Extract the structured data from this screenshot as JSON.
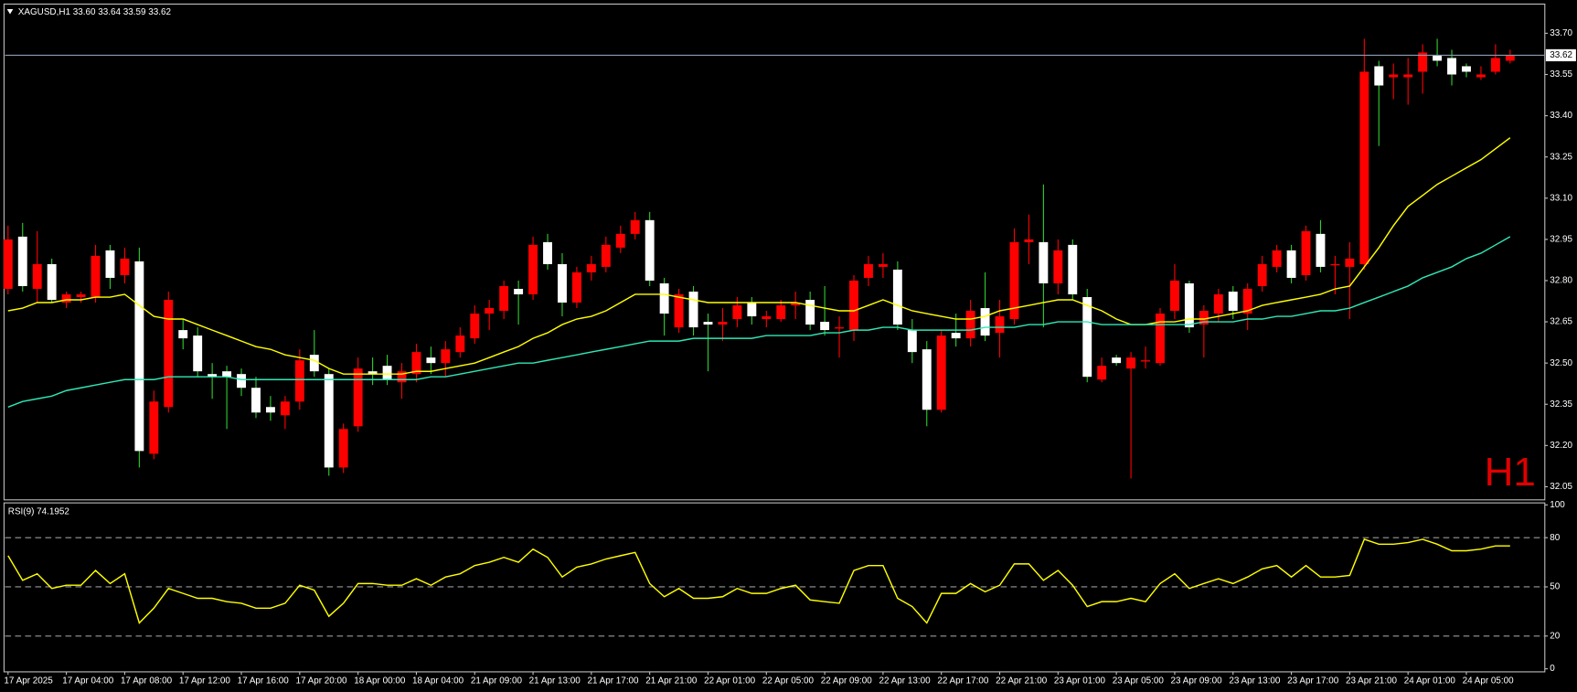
{
  "chart_data": [
    {
      "type": "candlestick",
      "title": "XAGUSD,H1  33.60 33.64 33.59 33.62",
      "watermark": "H1",
      "categories": [
        "17 Apr 2025",
        null,
        null,
        null,
        "17 Apr 04:00",
        null,
        null,
        null,
        "17 Apr 08:00",
        null,
        null,
        null,
        "17 Apr 12:00",
        null,
        null,
        null,
        "17 Apr 16:00",
        null,
        null,
        null,
        "17 Apr 20:00",
        null,
        null,
        null,
        "18 Apr 00:00",
        null,
        null,
        null,
        "18 Apr 04:00",
        null,
        null,
        null,
        "21 Apr 09:00",
        null,
        null,
        null,
        "21 Apr 13:00",
        null,
        null,
        null,
        "21 Apr 17:00",
        null,
        null,
        null,
        "21 Apr 21:00",
        null,
        null,
        null,
        "22 Apr 01:00",
        null,
        null,
        null,
        "22 Apr 05:00",
        null,
        null,
        null,
        "22 Apr 09:00",
        null,
        null,
        null,
        "22 Apr 13:00",
        null,
        null,
        null,
        "22 Apr 17:00",
        null,
        null,
        null,
        "22 Apr 21:00",
        null,
        null,
        null,
        "23 Apr 01:00",
        null,
        null,
        null,
        "23 Apr 05:00",
        null,
        null,
        null,
        "23 Apr 09:00",
        null,
        null,
        null,
        "23 Apr 13:00",
        null,
        null,
        null,
        "23 Apr 17:00",
        null,
        null,
        null,
        "23 Apr 21:00",
        null,
        null,
        null,
        "24 Apr 01:00",
        null,
        null,
        null,
        "24 Apr 05:00",
        null,
        null,
        null
      ],
      "open": [
        32.77,
        32.96,
        32.77,
        32.86,
        32.72,
        32.74,
        32.74,
        32.91,
        32.82,
        32.87,
        32.17,
        32.34,
        32.62,
        32.6,
        32.46,
        32.47,
        32.46,
        32.41,
        32.34,
        32.31,
        32.36,
        32.53,
        32.46,
        32.12,
        32.27,
        32.47,
        32.49,
        32.43,
        32.46,
        32.52,
        32.5,
        32.54,
        32.59,
        32.68,
        32.69,
        32.77,
        32.75,
        32.94,
        32.86,
        32.72,
        32.83,
        32.85,
        32.92,
        32.97,
        33.02,
        32.79,
        32.63,
        32.76,
        32.65,
        32.64,
        32.66,
        32.72,
        32.66,
        32.66,
        32.71,
        32.73,
        32.65,
        32.63,
        32.62,
        32.81,
        32.85,
        32.84,
        32.62,
        32.55,
        32.33,
        32.61,
        32.59,
        32.7,
        32.61,
        32.66,
        32.94,
        32.94,
        32.79,
        32.93,
        32.74,
        32.44,
        32.52,
        32.48,
        32.51,
        32.5,
        32.69,
        32.79,
        32.64,
        32.68,
        32.76,
        32.68,
        32.78,
        32.85,
        32.91,
        32.82,
        32.97,
        32.86,
        32.85,
        32.86,
        33.58,
        33.54,
        33.54,
        33.56,
        33.62,
        33.61,
        33.58,
        33.54,
        33.56,
        33.6
      ],
      "high": [
        33.0,
        33.01,
        32.98,
        32.88,
        32.76,
        32.76,
        32.93,
        32.93,
        32.92,
        32.92,
        32.4,
        32.76,
        32.66,
        32.63,
        32.5,
        32.49,
        32.48,
        32.45,
        32.38,
        32.38,
        32.55,
        32.62,
        32.48,
        32.28,
        32.52,
        32.52,
        32.53,
        32.5,
        32.57,
        32.56,
        32.58,
        32.63,
        32.71,
        32.73,
        32.8,
        32.8,
        32.96,
        32.97,
        32.9,
        32.85,
        32.89,
        32.96,
        33.0,
        33.05,
        33.05,
        32.81,
        32.77,
        32.78,
        32.68,
        32.7,
        32.74,
        32.74,
        32.69,
        32.73,
        32.76,
        32.76,
        32.78,
        32.67,
        32.82,
        32.89,
        32.9,
        32.87,
        32.66,
        32.58,
        32.62,
        32.68,
        32.73,
        32.83,
        32.73,
        32.99,
        33.04,
        33.15,
        32.95,
        32.95,
        32.77,
        32.52,
        32.53,
        32.54,
        32.56,
        32.7,
        32.86,
        32.8,
        32.71,
        32.77,
        32.78,
        32.79,
        32.89,
        32.93,
        32.93,
        33.0,
        33.02,
        32.89,
        32.94,
        33.68,
        33.6,
        33.59,
        33.61,
        33.66,
        33.68,
        33.64,
        33.59,
        33.58,
        33.66,
        33.64
      ],
      "low": [
        32.75,
        32.76,
        32.72,
        32.72,
        32.7,
        32.72,
        32.72,
        32.77,
        32.79,
        32.12,
        32.15,
        32.32,
        32.55,
        32.45,
        32.37,
        32.26,
        32.38,
        32.3,
        32.29,
        32.26,
        32.33,
        32.45,
        32.09,
        32.1,
        32.25,
        32.42,
        32.42,
        32.37,
        32.43,
        32.46,
        32.45,
        32.52,
        32.57,
        32.62,
        32.66,
        32.64,
        32.73,
        32.84,
        32.67,
        32.7,
        32.8,
        32.83,
        32.9,
        32.95,
        32.78,
        32.6,
        32.61,
        32.6,
        32.47,
        32.58,
        32.63,
        32.64,
        32.63,
        32.65,
        32.66,
        32.62,
        32.6,
        32.52,
        32.58,
        32.78,
        32.81,
        32.62,
        32.5,
        32.27,
        32.32,
        32.56,
        32.56,
        32.58,
        32.52,
        32.64,
        32.86,
        32.63,
        32.75,
        32.73,
        32.43,
        32.43,
        32.49,
        32.08,
        32.48,
        32.49,
        32.66,
        32.61,
        32.52,
        32.65,
        32.66,
        32.62,
        32.76,
        32.83,
        32.79,
        32.8,
        32.83,
        32.75,
        32.66,
        32.84,
        33.29,
        33.46,
        33.44,
        33.48,
        33.58,
        33.51,
        33.54,
        33.53,
        33.55,
        33.59
      ],
      "close": [
        32.95,
        32.78,
        32.86,
        32.73,
        32.75,
        32.75,
        32.89,
        32.81,
        32.88,
        32.18,
        32.36,
        32.73,
        32.59,
        32.47,
        32.45,
        32.45,
        32.41,
        32.32,
        32.32,
        32.36,
        32.51,
        32.47,
        32.12,
        32.26,
        32.48,
        32.46,
        32.44,
        32.47,
        32.54,
        32.5,
        32.55,
        32.6,
        32.68,
        32.7,
        32.78,
        32.75,
        32.93,
        32.86,
        32.72,
        32.83,
        32.86,
        32.93,
        32.97,
        33.02,
        32.8,
        32.68,
        32.75,
        32.63,
        32.64,
        32.65,
        32.71,
        32.67,
        32.67,
        32.71,
        32.72,
        32.64,
        32.62,
        32.63,
        32.8,
        32.86,
        32.86,
        32.64,
        32.54,
        32.33,
        32.6,
        32.59,
        32.69,
        32.6,
        32.67,
        32.94,
        32.95,
        32.79,
        32.91,
        32.75,
        32.45,
        32.49,
        32.5,
        32.52,
        32.51,
        32.68,
        32.8,
        32.63,
        32.69,
        32.75,
        32.69,
        32.77,
        32.86,
        32.91,
        32.81,
        32.98,
        32.85,
        32.86,
        32.88,
        33.56,
        33.51,
        33.55,
        33.55,
        33.63,
        33.6,
        33.55,
        33.56,
        33.55,
        33.61,
        33.62
      ],
      "series": [
        {
          "color": "#ffff00",
          "values": [
            32.69,
            32.7,
            32.72,
            32.72,
            32.73,
            32.73,
            32.74,
            32.74,
            32.75,
            32.71,
            32.67,
            32.66,
            32.66,
            32.64,
            32.62,
            32.6,
            32.58,
            32.56,
            32.55,
            32.53,
            32.52,
            32.51,
            32.48,
            32.46,
            32.46,
            32.46,
            32.46,
            32.46,
            32.47,
            32.47,
            32.48,
            32.49,
            32.5,
            32.52,
            32.54,
            32.56,
            32.59,
            32.61,
            32.64,
            32.66,
            32.67,
            32.69,
            32.72,
            32.75,
            32.75,
            32.75,
            32.74,
            32.73,
            32.72,
            32.72,
            32.72,
            32.72,
            32.72,
            32.72,
            32.72,
            32.71,
            32.7,
            32.69,
            32.69,
            32.71,
            32.73,
            32.71,
            32.69,
            32.68,
            32.67,
            32.66,
            32.66,
            32.67,
            32.69,
            32.7,
            32.71,
            32.72,
            32.73,
            32.73,
            32.71,
            32.69,
            32.66,
            32.64,
            32.64,
            32.65,
            32.65,
            32.66,
            32.66,
            32.67,
            32.68,
            32.69,
            32.71,
            32.72,
            32.73,
            32.74,
            32.75,
            32.77,
            32.78,
            32.85,
            32.92,
            33.0,
            33.07,
            33.11,
            33.15,
            33.18,
            33.21,
            33.24,
            33.28,
            33.32
          ]
        },
        {
          "color": "#2ee8b6",
          "values": [
            32.34,
            32.36,
            32.37,
            32.38,
            32.4,
            32.41,
            32.42,
            32.43,
            32.44,
            32.44,
            32.44,
            32.45,
            32.45,
            32.45,
            32.45,
            32.45,
            32.44,
            32.44,
            32.44,
            32.44,
            32.44,
            32.44,
            32.44,
            32.44,
            32.44,
            32.44,
            32.44,
            32.44,
            32.44,
            32.45,
            32.45,
            32.46,
            32.47,
            32.48,
            32.49,
            32.5,
            32.5,
            32.51,
            32.52,
            32.53,
            32.54,
            32.55,
            32.56,
            32.57,
            32.58,
            32.58,
            32.58,
            32.59,
            32.59,
            32.59,
            32.59,
            32.59,
            32.6,
            32.6,
            32.6,
            32.6,
            32.61,
            32.61,
            32.62,
            32.62,
            32.63,
            32.63,
            32.62,
            32.62,
            32.62,
            32.62,
            32.62,
            32.63,
            32.63,
            32.63,
            32.64,
            32.64,
            32.65,
            32.65,
            32.65,
            32.64,
            32.64,
            32.64,
            32.64,
            32.64,
            32.64,
            32.64,
            32.65,
            32.65,
            32.65,
            32.66,
            32.66,
            32.67,
            32.67,
            32.68,
            32.69,
            32.69,
            32.7,
            32.72,
            32.74,
            32.76,
            32.78,
            32.81,
            32.83,
            32.85,
            32.88,
            32.9,
            32.93,
            32.96
          ]
        }
      ],
      "colors": {
        "up": "#ff0000",
        "down": "#ffffff",
        "wick_up": "#ff0000",
        "wick_down": "#2fd02f"
      },
      "last_price": 33.62,
      "ylim": [
        32.0,
        33.8
      ],
      "yticks": [
        {
          "value": 33.7,
          "label": "33.70"
        },
        33.55,
        {
          "value": 33.4,
          "label": "33.40"
        },
        33.25,
        {
          "value": 33.1,
          "label": "33.10"
        },
        32.95,
        {
          "value": 32.8,
          "label": "32.80"
        },
        32.65,
        {
          "value": 32.5,
          "label": "32.50"
        },
        32.35,
        {
          "value": 32.2,
          "label": "32.20"
        },
        32.05
      ]
    },
    {
      "type": "line",
      "title": "RSI(9) 74.1952",
      "color": "#ffff00",
      "values": [
        69,
        54,
        58,
        49,
        51,
        51,
        60,
        52,
        58,
        28,
        37,
        49,
        46,
        43,
        43,
        41,
        40,
        37,
        37,
        40,
        51,
        48,
        32,
        40,
        52,
        52,
        51,
        51,
        55,
        51,
        56,
        58,
        63,
        65,
        68,
        65,
        73,
        68,
        56,
        62,
        64,
        67,
        69,
        71,
        52,
        44,
        49,
        43,
        43,
        44,
        49,
        46,
        46,
        49,
        51,
        42,
        41,
        40,
        60,
        63,
        63,
        43,
        38,
        28,
        46,
        46,
        52,
        47,
        51,
        64,
        64,
        54,
        60,
        51,
        38,
        41,
        41,
        43,
        41,
        52,
        58,
        49,
        52,
        55,
        52,
        56,
        61,
        63,
        56,
        63,
        56,
        56,
        57,
        79,
        76,
        76,
        77,
        79,
        76,
        72,
        72,
        73,
        75,
        75
      ],
      "ylim": [
        0,
        100
      ],
      "yticks": [
        100,
        80,
        50,
        20,
        0
      ],
      "levels": [
        80,
        50,
        20
      ]
    }
  ]
}
